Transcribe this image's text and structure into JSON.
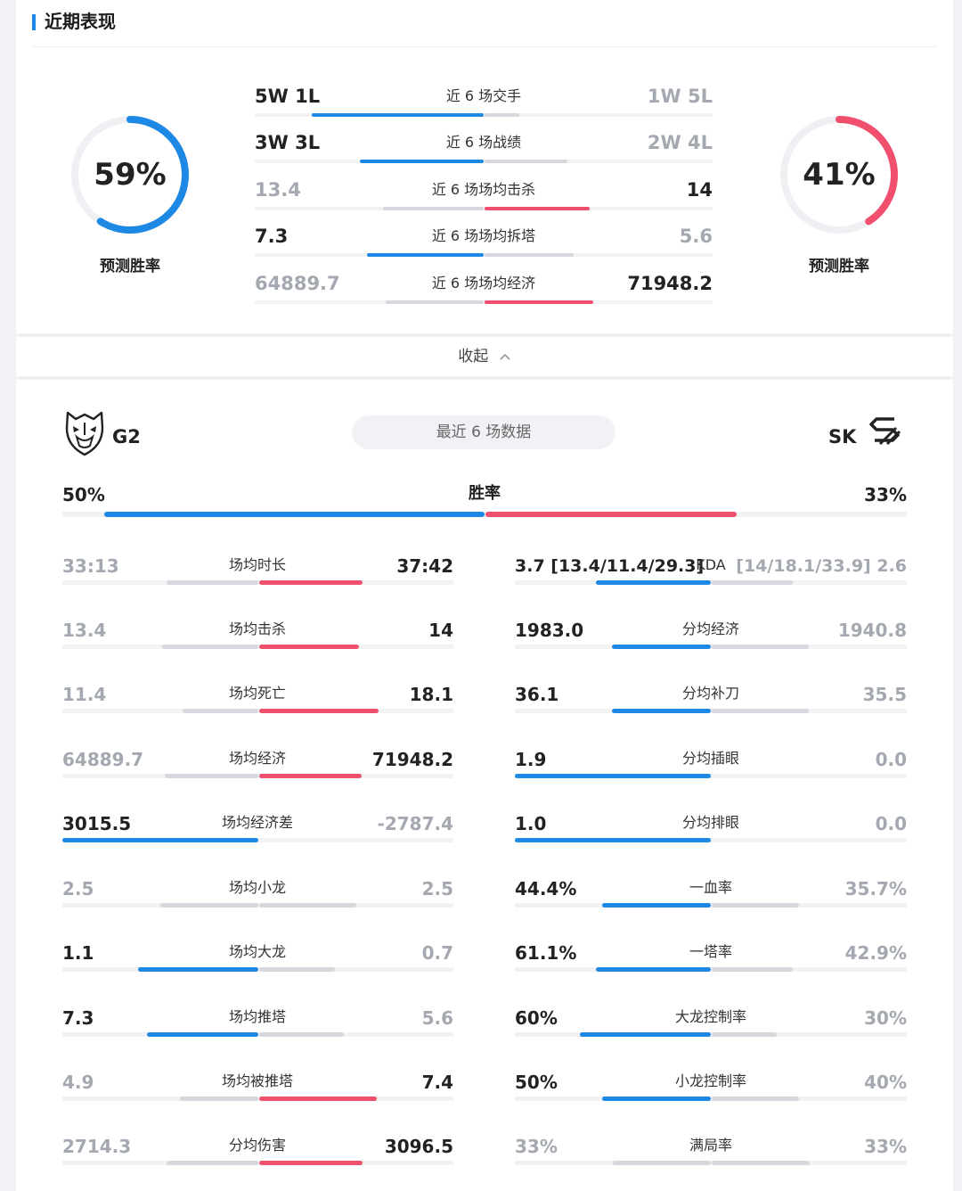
{
  "colors": {
    "blue": "#1e88e5",
    "red": "#f0506e",
    "gray": "#d6d8de",
    "ring_track": "#eef0f4"
  },
  "section": {
    "title": "近期表现"
  },
  "prediction": {
    "left": {
      "pct_text": "59%",
      "value": 0.59,
      "label": "预测胜率",
      "color": "#1e88e5"
    },
    "right": {
      "pct_text": "41%",
      "value": 0.41,
      "label": "预测胜率",
      "color": "#f0506e"
    }
  },
  "comparison": [
    {
      "left": "5W 1L",
      "label": "近 6 场交手",
      "right": "1W 5L",
      "winner": "left",
      "lv": 5,
      "rv": 1
    },
    {
      "left": "3W 3L",
      "label": "近 6 场战绩",
      "right": "2W 4L",
      "winner": "left",
      "lv": 3,
      "rv": 2
    },
    {
      "left": "13.4",
      "label": "近 6 场场均击杀",
      "right": "14",
      "winner": "right",
      "lv": 13.4,
      "rv": 14
    },
    {
      "left": "7.3",
      "label": "近 6 场场均拆塔",
      "right": "5.6",
      "winner": "left",
      "lv": 7.3,
      "rv": 5.6
    },
    {
      "left": "64889.7",
      "label": "近 6 场场均经济",
      "right": "71948.2",
      "winner": "right",
      "lv": 64889.7,
      "rv": 71948.2
    }
  ],
  "collapse": {
    "label": "收起"
  },
  "teams": {
    "left": {
      "name": "G2",
      "logo_icon": "g2-logo-icon"
    },
    "right": {
      "name": "SK",
      "logo_icon": "sk-logo-icon"
    },
    "recent_label": "最近 6 场数据"
  },
  "winrate": {
    "left": "50%",
    "label": "胜率",
    "right": "33%",
    "lv": 50,
    "rv": 33
  },
  "left_stats": [
    {
      "left": "33:13",
      "label": "场均时长",
      "right": "37:42",
      "winner": "right",
      "lv": 1993,
      "rv": 2262
    },
    {
      "left": "13.4",
      "label": "场均击杀",
      "right": "14",
      "winner": "right",
      "lv": 13.4,
      "rv": 14
    },
    {
      "left": "11.4",
      "label": "场均死亡",
      "right": "18.1",
      "winner": "right",
      "lv": 11.4,
      "rv": 18.1
    },
    {
      "left": "64889.7",
      "label": "场均经济",
      "right": "71948.2",
      "winner": "right",
      "lv": 64889.7,
      "rv": 71948.2
    },
    {
      "left": "3015.5",
      "label": "场均经济差",
      "right": "-2787.4",
      "winner": "left",
      "lv": 1,
      "rv": 0
    },
    {
      "left": "2.5",
      "label": "场均小龙",
      "right": "2.5",
      "winner": "none",
      "lv": 2.5,
      "rv": 2.5
    },
    {
      "left": "1.1",
      "label": "场均大龙",
      "right": "0.7",
      "winner": "left",
      "lv": 1.1,
      "rv": 0.7
    },
    {
      "left": "7.3",
      "label": "场均推塔",
      "right": "5.6",
      "winner": "left",
      "lv": 7.3,
      "rv": 5.6
    },
    {
      "left": "4.9",
      "label": "场均被推塔",
      "right": "7.4",
      "winner": "right",
      "lv": 4.9,
      "rv": 7.4
    },
    {
      "left": "2714.3",
      "label": "分均伤害",
      "right": "3096.5",
      "winner": "right",
      "lv": 2714.3,
      "rv": 3096.5
    }
  ],
  "right_stats": [
    {
      "left": "3.7 [13.4/11.4/29.3]",
      "label": "KDA",
      "right": "[14/18.1/33.9] 2.6",
      "winner": "left",
      "lv": 3.7,
      "rv": 2.6
    },
    {
      "left": "1983.0",
      "label": "分均经济",
      "right": "1940.8",
      "winner": "left",
      "lv": 1983.0,
      "rv": 1940.8
    },
    {
      "left": "36.1",
      "label": "分均补刀",
      "right": "35.5",
      "winner": "left",
      "lv": 36.1,
      "rv": 35.5
    },
    {
      "left": "1.9",
      "label": "分均插眼",
      "right": "0.0",
      "winner": "left",
      "lv": 1.9,
      "rv": 0
    },
    {
      "left": "1.0",
      "label": "分均排眼",
      "right": "0.0",
      "winner": "left",
      "lv": 1.0,
      "rv": 0
    },
    {
      "left": "44.4%",
      "label": "一血率",
      "right": "35.7%",
      "winner": "left",
      "lv": 44.4,
      "rv": 35.7
    },
    {
      "left": "61.1%",
      "label": "一塔率",
      "right": "42.9%",
      "winner": "left",
      "lv": 61.1,
      "rv": 42.9
    },
    {
      "left": "60%",
      "label": "大龙控制率",
      "right": "30%",
      "winner": "left",
      "lv": 60,
      "rv": 30
    },
    {
      "left": "50%",
      "label": "小龙控制率",
      "right": "40%",
      "winner": "left",
      "lv": 50,
      "rv": 40
    },
    {
      "left": "33%",
      "label": "满局率",
      "right": "33%",
      "winner": "none",
      "lv": 33,
      "rv": 33
    }
  ]
}
